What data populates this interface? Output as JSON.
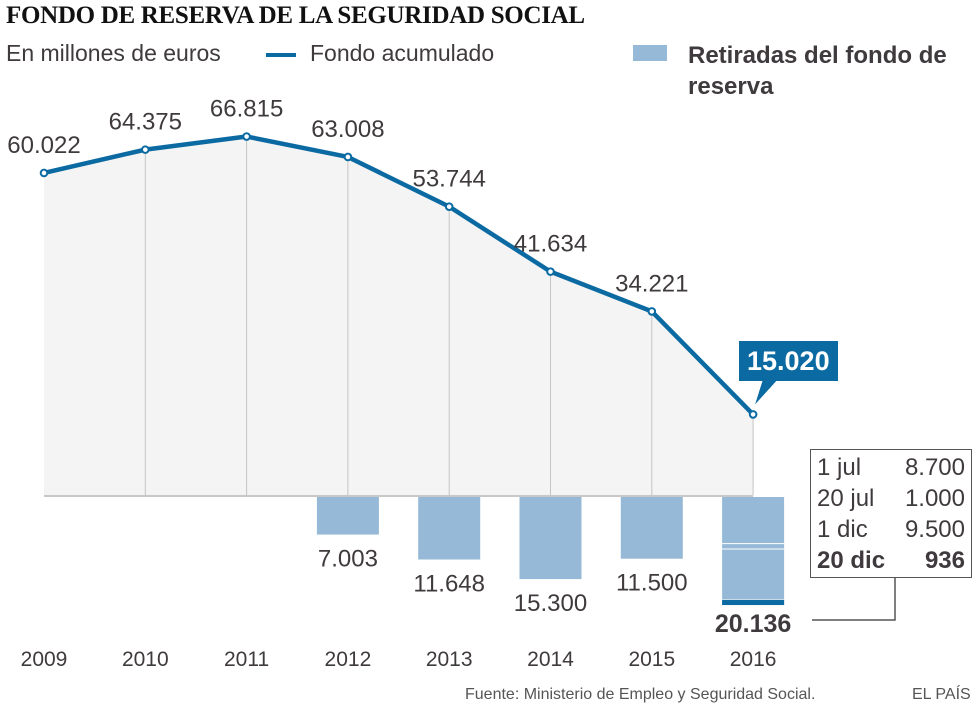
{
  "header": {
    "title": "FONDO DE RESERVA DE LA SEGURIDAD SOCIAL",
    "subtitle": "En millones de euros"
  },
  "legend": {
    "line_label": "Fondo acumulado",
    "bar_label": "Retiradas del fondo de reserva"
  },
  "colors": {
    "line": "#0b6aa2",
    "area": "#f4f4f4",
    "bars": "#95b9d6",
    "bar_highlight": "#0b6aa2",
    "text": "#3f3a3d"
  },
  "chart_data": {
    "type": "line",
    "title": "FONDO DE RESERVA DE LA SEGURIDAD SOCIAL",
    "subtitle": "En millones de euros",
    "xlabel": "",
    "ylabel": "",
    "grid": true,
    "legend_position": "top-right",
    "categories": [
      "2009",
      "2010",
      "2011",
      "2012",
      "2013",
      "2014",
      "2015",
      "2016"
    ],
    "series": [
      {
        "name": "Fondo acumulado",
        "type": "line-area",
        "values": [
          60022,
          64375,
          66815,
          63008,
          53744,
          41634,
          34221,
          15020
        ],
        "labels": [
          "60.022",
          "64.375",
          "66.815",
          "63.008",
          "53.744",
          "41.634",
          "34.221",
          "15.020"
        ]
      },
      {
        "name": "Retiradas del fondo de reserva",
        "type": "bar-negative",
        "values": [
          null,
          null,
          null,
          7003,
          11648,
          15300,
          11500,
          20136
        ],
        "labels": [
          "",
          "",
          "",
          "7.003",
          "11.648",
          "15.300",
          "11.500",
          "20.136"
        ]
      }
    ],
    "highlight": {
      "category": "2016",
      "label": "15.020"
    },
    "breakdown_2016": [
      {
        "date": "1 jul",
        "value": 8700,
        "label": "8.700",
        "bold": false
      },
      {
        "date": "20 jul",
        "value": 1000,
        "label": "1.000",
        "bold": false
      },
      {
        "date": "1 dic",
        "value": 9500,
        "label": "9.500",
        "bold": false
      },
      {
        "date": "20 dic",
        "value": 936,
        "label": "936",
        "bold": true
      }
    ],
    "ylim": [
      -20136,
      66815
    ]
  },
  "footer": {
    "source": "Fuente: Ministerio de Empleo y Seguridad Social.",
    "brand": "EL PAÍS"
  }
}
